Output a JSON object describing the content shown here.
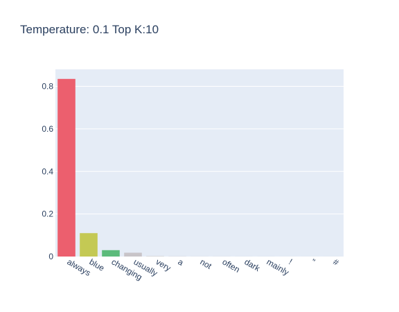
{
  "chart_data": {
    "type": "bar",
    "title": "Temperature: 0.1 Top K:10",
    "xlabel": "",
    "ylabel": "",
    "categories": [
      "always",
      "blue",
      "changing",
      "usually",
      "very",
      "a",
      "not",
      "often",
      "dark",
      "mainly",
      "!",
      "\"",
      "#"
    ],
    "values": [
      0.835,
      0.11,
      0.03,
      0.018,
      0.002,
      0.001,
      0.0005,
      0.0005,
      0.0003,
      0.0003,
      0.0001,
      0.0001,
      0.0001
    ],
    "bar_colors": [
      "#ec5f6e",
      "#c4c954",
      "#5cbb7b",
      "#c8c4c8",
      "#cccccc",
      "#cccccc",
      "#cccccc",
      "#cccccc",
      "#cccccc",
      "#cccccc",
      "#cccccc",
      "#cccccc",
      "#cccccc"
    ],
    "ylim": [
      0,
      0.88
    ],
    "yticks": [
      0,
      0.2,
      0.4,
      0.6,
      0.8
    ],
    "ytick_labels": [
      "0",
      "0.2",
      "0.4",
      "0.6",
      "0.8"
    ],
    "grid": true,
    "legend": "none",
    "plot_background": "#e5ecf6",
    "grid_color": "#ffffff"
  }
}
